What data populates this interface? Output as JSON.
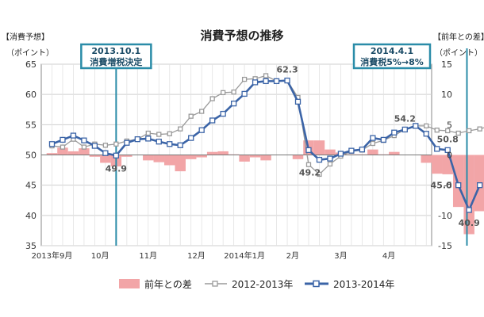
{
  "chart_data": {
    "type": "bar+line",
    "title": "消費予想の推移",
    "left_axis": {
      "label_1": "【消費予想】",
      "label_2": "（ポイント）",
      "min": 35,
      "max": 65,
      "ticks": [
        35,
        40,
        45,
        50,
        55,
        60,
        65
      ]
    },
    "right_axis": {
      "label_1": "【前年との差】",
      "label_2": "（ポイント）",
      "min": -15,
      "max": 15,
      "ticks": [
        -15,
        -10,
        -5,
        0,
        5,
        10,
        15
      ]
    },
    "x_ticks": [
      {
        "label": "2013年9月",
        "pos": 0
      },
      {
        "label": "10月",
        "pos": 4.5
      },
      {
        "label": "11月",
        "pos": 9
      },
      {
        "label": "12月",
        "pos": 13.5
      },
      {
        "label": "2014年1月",
        "pos": 18
      },
      {
        "label": "2月",
        "pos": 22.5
      },
      {
        "label": "3月",
        "pos": 27
      },
      {
        "label": "4月",
        "pos": 31.5
      }
    ],
    "x_range": [
      -1,
      35.5
    ],
    "series": [
      {
        "name": "2013-2014年",
        "color": "#3b64a7",
        "values": [
          51.8,
          52.5,
          53.2,
          52.4,
          51.5,
          50.3,
          49.9,
          52.0,
          52.6,
          52.7,
          52.2,
          51.8,
          51.6,
          52.8,
          54.1,
          55.7,
          56.8,
          58.5,
          60.1,
          62.0,
          62.2,
          62.2,
          62.3,
          58.8,
          50.8,
          49.2,
          49.4,
          50.2,
          50.7,
          50.9,
          52.8,
          52.5,
          53.7,
          54.2,
          54.8,
          53.5,
          51.0,
          50.8,
          45.0,
          40.9,
          45.0
        ]
      },
      {
        "name": "2012-2013年",
        "color": "#9a9a9a",
        "values": [
          51.5,
          51.3,
          52.6,
          51.3,
          51.8,
          51.6,
          51.8,
          52.3,
          52.6,
          53.6,
          53.4,
          53.5,
          54.3,
          56.4,
          57.2,
          59.3,
          60.3,
          60.4,
          62.5,
          62.6,
          63.1,
          62.2,
          62.3,
          59.5,
          48.4,
          46.8,
          48.5,
          49.8,
          50.6,
          50.8,
          51.9,
          52.4,
          53.2,
          54.2,
          54.8,
          54.8,
          54.1,
          54.0,
          53.6,
          54.0,
          54.3,
          54.8,
          54.8,
          54.8
        ]
      }
    ],
    "bars": {
      "name": "前年との差",
      "color": "#f2a5a7",
      "values": [
        0.3,
        1.2,
        0.6,
        1.1,
        -0.3,
        -1.3,
        -1.9,
        -0.3,
        0.0,
        -0.9,
        -1.2,
        -1.7,
        -2.7,
        -0.7,
        -0.4,
        0.5,
        0.6,
        0.1,
        -1.1,
        -0.4,
        -0.9,
        0.0,
        0.0,
        -0.7,
        2.4,
        2.4,
        0.9,
        0.4,
        0.1,
        0.1,
        0.9,
        0.1,
        0.5,
        0.0,
        0.0,
        -1.3,
        -3.1,
        -3.2,
        -8.6,
        -13.1,
        -9.3
      ]
    },
    "data_labels": [
      {
        "text": "49.9",
        "index": 6,
        "series": "2013-2014年",
        "pos": "below"
      },
      {
        "text": "62.3",
        "index": 22,
        "series": "2013-2014年",
        "pos": "above"
      },
      {
        "text": "49.2",
        "index": 25,
        "series": "2013-2014年",
        "pos": "below-left"
      },
      {
        "text": "54.2",
        "index": 33,
        "series": "2013-2014年",
        "pos": "above"
      },
      {
        "text": "50.8",
        "index": 37,
        "series": "2013-2014年",
        "pos": "above"
      },
      {
        "text": "45.0",
        "index": 38,
        "series": "2013-2014年",
        "pos": "left"
      },
      {
        "text": "40.9",
        "index": 39,
        "series": "2013-2014年",
        "pos": "below"
      },
      {
        "text": "45.0",
        "index": 40,
        "series": "2013-2014年",
        "pos": "right"
      }
    ],
    "annotations": [
      {
        "line1": "2013.10.1",
        "line2": "消費増税決定",
        "x": 6
      },
      {
        "line1": "2014.4.1",
        "line2": "消費税5%→8%",
        "x": 38.8
      }
    ],
    "grid": true,
    "legend_position": "bottom"
  }
}
